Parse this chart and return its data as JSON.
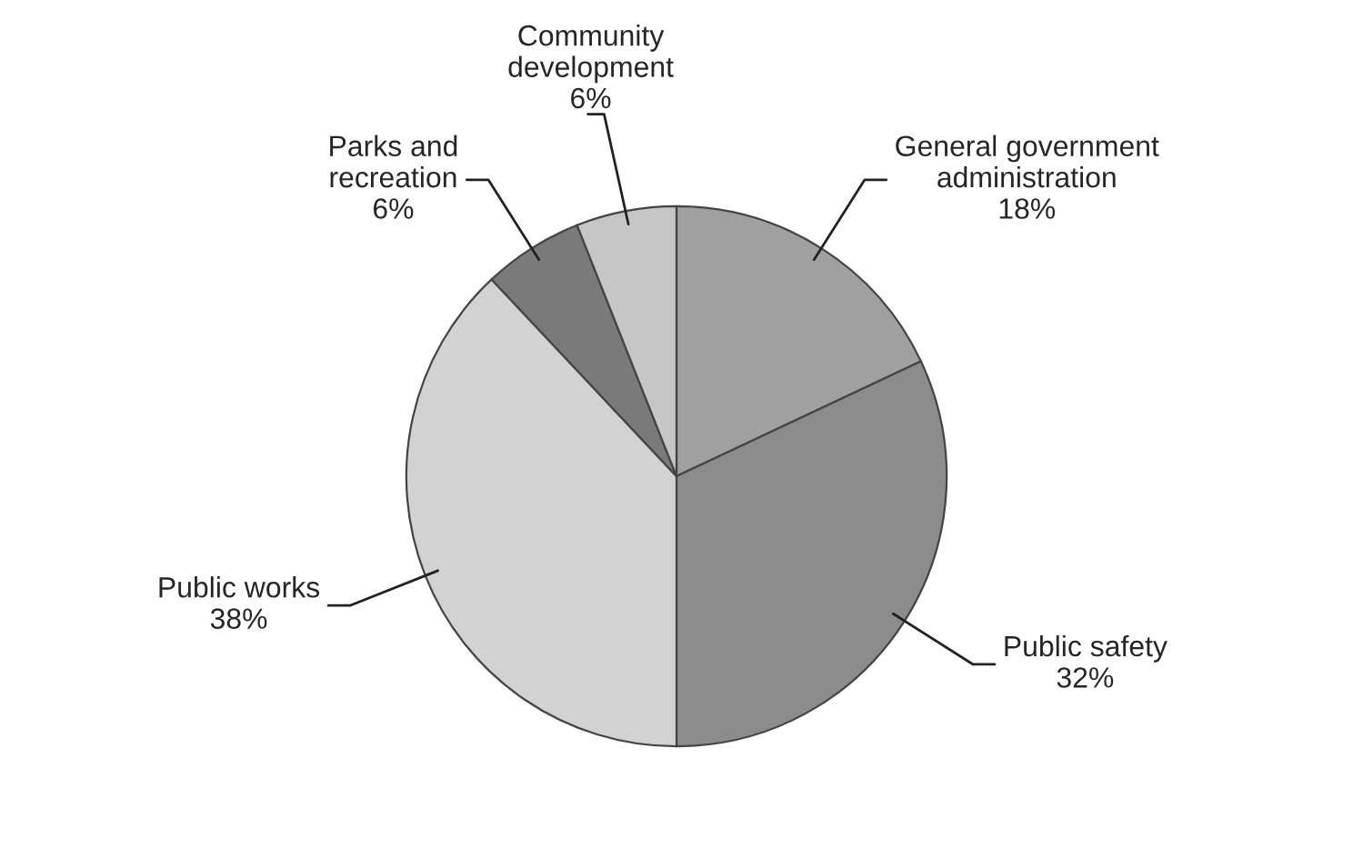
{
  "chart_data": {
    "type": "pie",
    "categories": [
      "General government administration",
      "Public safety",
      "Public works",
      "Parks and recreation",
      "Community development"
    ],
    "values": [
      18,
      32,
      38,
      6,
      6
    ],
    "colors": [
      "#a0a0a0",
      "#8c8c8c",
      "#d2d2d2",
      "#7a7a7a",
      "#c6c6c6"
    ],
    "value_labels": [
      "18%",
      "32%",
      "38%",
      "6%",
      "6%"
    ]
  }
}
